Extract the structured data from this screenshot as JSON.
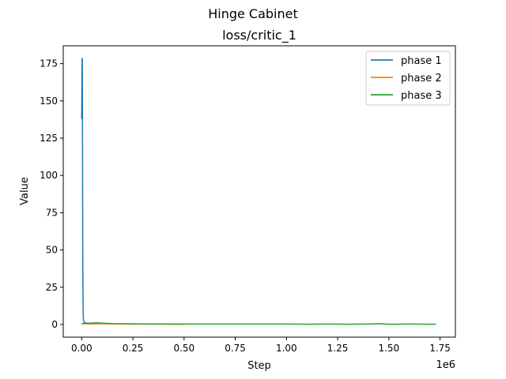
{
  "chart_data": {
    "type": "line",
    "suptitle": "Hinge Cabinet",
    "title": "loss/critic_1",
    "xlabel": "Step",
    "ylabel": "Value",
    "x_offset_label": "1e6",
    "xlim": [
      -90000,
      1825000
    ],
    "ylim": [
      -8.5,
      187
    ],
    "x_ticks": [
      0,
      250000,
      500000,
      750000,
      1000000,
      1250000,
      1500000,
      1750000
    ],
    "x_tick_labels": [
      "0.00",
      "0.25",
      "0.50",
      "0.75",
      "1.00",
      "1.25",
      "1.50",
      "1.75"
    ],
    "y_ticks": [
      0,
      25,
      50,
      75,
      100,
      125,
      150,
      175
    ],
    "y_tick_labels": [
      "0",
      "25",
      "50",
      "75",
      "100",
      "125",
      "150",
      "175"
    ],
    "legend_position": "top-right",
    "series": [
      {
        "name": "phase 1",
        "color": "#1f77b4",
        "points": [
          [
            0,
            138
          ],
          [
            1000,
            155
          ],
          [
            2000,
            178.5
          ],
          [
            2500,
            170
          ],
          [
            3000,
            178
          ],
          [
            3500,
            160
          ],
          [
            4000,
            130
          ],
          [
            5000,
            60
          ],
          [
            6000,
            25
          ],
          [
            7000,
            13
          ],
          [
            8000,
            4
          ],
          [
            10000,
            2
          ],
          [
            15000,
            1.2
          ],
          [
            20000,
            1.0
          ],
          [
            40000,
            0.8
          ],
          [
            60000,
            0.9
          ],
          [
            80000,
            0.7
          ],
          [
            100000,
            0.6
          ]
        ]
      },
      {
        "name": "phase 2",
        "color": "#ff7f0e",
        "points": [
          [
            0,
            0.6
          ],
          [
            50000,
            0.4
          ],
          [
            100000,
            0.5
          ],
          [
            150000,
            0.4
          ],
          [
            200000,
            0.3
          ],
          [
            250000,
            0.4
          ],
          [
            300000,
            0.3
          ],
          [
            350000,
            0.3
          ],
          [
            400000,
            0.3
          ],
          [
            450000,
            0.2
          ],
          [
            500000,
            0.2
          ]
        ]
      },
      {
        "name": "phase 3",
        "color": "#2ca02c",
        "points": [
          [
            0,
            0.5
          ],
          [
            20000,
            0.7
          ],
          [
            50000,
            1.0
          ],
          [
            80000,
            1.1
          ],
          [
            100000,
            0.9
          ],
          [
            150000,
            0.6
          ],
          [
            200000,
            0.5
          ],
          [
            300000,
            0.4
          ],
          [
            400000,
            0.3
          ],
          [
            500000,
            0.3
          ],
          [
            600000,
            0.3
          ],
          [
            700000,
            0.3
          ],
          [
            800000,
            0.3
          ],
          [
            900000,
            0.3
          ],
          [
            1000000,
            0.3
          ],
          [
            1100000,
            0.2
          ],
          [
            1200000,
            0.3
          ],
          [
            1300000,
            0.2
          ],
          [
            1400000,
            0.3
          ],
          [
            1450000,
            0.5
          ],
          [
            1500000,
            0.2
          ],
          [
            1600000,
            0.3
          ],
          [
            1700000,
            0.2
          ],
          [
            1730000,
            0.2
          ]
        ]
      }
    ]
  }
}
